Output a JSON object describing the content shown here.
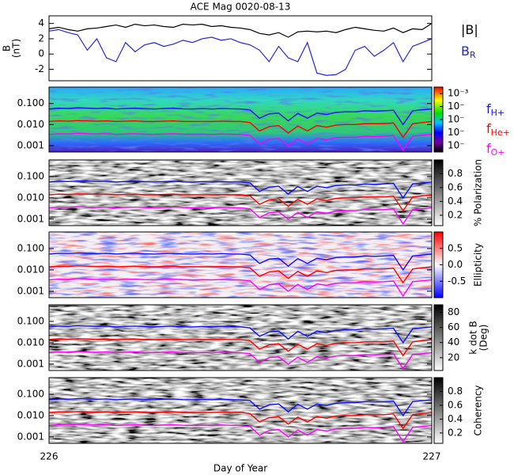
{
  "chart_data": [
    {
      "type": "line",
      "title": "ACE Mag 0020-08-13",
      "x": [
        226.0,
        226.025,
        226.05,
        226.075,
        226.1,
        226.125,
        226.15,
        226.175,
        226.2,
        226.225,
        226.25,
        226.275,
        226.3,
        226.325,
        226.35,
        226.375,
        226.4,
        226.425,
        226.45,
        226.475,
        226.5,
        226.525,
        226.55,
        226.575,
        226.6,
        226.625,
        226.65,
        226.675,
        226.7,
        226.725,
        226.75,
        226.775,
        226.8,
        226.825,
        226.85,
        226.875,
        226.9,
        226.925,
        226.95,
        226.975,
        227.0
      ],
      "xlim": [
        226,
        227
      ],
      "ylim": [
        -3.5,
        5
      ],
      "yticks": [
        -2,
        0,
        2,
        4
      ],
      "ylabel": [
        "B",
        "(nT)"
      ],
      "series": [
        {
          "name": "|B|",
          "color": "#000000",
          "values": [
            3.3,
            3.5,
            3.2,
            3.0,
            3.3,
            3.4,
            3.6,
            3.8,
            3.5,
            3.9,
            3.7,
            3.8,
            3.6,
            3.5,
            3.9,
            3.8,
            3.9,
            3.6,
            3.7,
            3.5,
            3.4,
            3.2,
            2.7,
            2.5,
            2.8,
            2.2,
            2.9,
            3.0,
            2.9,
            3.0,
            2.8,
            3.2,
            3.5,
            3.3,
            3.1,
            3.0,
            3.4,
            2.8,
            3.3,
            3.2,
            4.0
          ]
        },
        {
          "name": "B",
          "subscript": "R",
          "color": "#2424e6",
          "values": [
            3.0,
            3.2,
            2.8,
            2.5,
            0.5,
            2.0,
            -0.5,
            -1.0,
            1.5,
            0.3,
            1.2,
            1.5,
            1.0,
            1.3,
            1.8,
            1.5,
            2.0,
            2.2,
            1.8,
            2.0,
            1.5,
            1.2,
            0.5,
            -1.0,
            1.0,
            -0.5,
            -1.0,
            1.5,
            -2.5,
            -2.8,
            -2.7,
            -2.0,
            0.5,
            1.0,
            -0.3,
            0.5,
            1.5,
            -1.0,
            1.0,
            1.5,
            2.0
          ]
        }
      ]
    },
    {
      "type": "spectrogram",
      "colormap": "rainbow",
      "log": true,
      "x": [
        226.0,
        226.025,
        226.05,
        226.075,
        226.1,
        226.125,
        226.15,
        226.175,
        226.2,
        226.225,
        226.25,
        226.275,
        226.3,
        226.325,
        226.35,
        226.375,
        226.4,
        226.425,
        226.45,
        226.475,
        226.5,
        226.525,
        226.55,
        226.575,
        226.6,
        226.625,
        226.65,
        226.675,
        226.7,
        226.725,
        226.75,
        226.775,
        226.8,
        226.825,
        226.85,
        226.875,
        226.9,
        226.925,
        226.95,
        226.975,
        227.0
      ],
      "xlim": [
        226,
        227
      ],
      "ylim": [
        0.0005,
        0.6
      ],
      "yticks": [
        {
          "value": 0.1,
          "label": "0.100"
        },
        {
          "value": 0.01,
          "label": "0.010"
        },
        {
          "value": 0.001,
          "label": "0.001"
        }
      ],
      "clim": [
        -7.5,
        -2.5
      ],
      "cticks": [
        {
          "value": -3,
          "label": "10⁻³"
        },
        {
          "value": -4,
          "label": "10⁻"
        },
        {
          "value": -5,
          "label": "10⁻"
        },
        {
          "value": -6,
          "label": "10⁻"
        },
        {
          "value": -7,
          "label": "10⁻"
        }
      ],
      "series": [
        {
          "name": "f",
          "subscript": "H+",
          "color": "#1010ff",
          "values": [
            0.055,
            0.06,
            0.058,
            0.062,
            0.06,
            0.058,
            0.06,
            0.055,
            0.058,
            0.06,
            0.057,
            0.055,
            0.058,
            0.06,
            0.056,
            0.055,
            0.057,
            0.055,
            0.058,
            0.056,
            0.055,
            0.05,
            0.02,
            0.032,
            0.035,
            0.015,
            0.034,
            0.02,
            0.035,
            0.03,
            0.038,
            0.04,
            0.04,
            0.045,
            0.043,
            0.045,
            0.048,
            0.01,
            0.045,
            0.05,
            0.055
          ]
        },
        {
          "name": "f",
          "subscript": "He+",
          "color": "#ff0000",
          "values": [
            0.014,
            0.015,
            0.0145,
            0.0155,
            0.015,
            0.0145,
            0.015,
            0.014,
            0.0145,
            0.015,
            0.014,
            0.014,
            0.0145,
            0.015,
            0.014,
            0.014,
            0.014,
            0.014,
            0.0145,
            0.014,
            0.014,
            0.0125,
            0.005,
            0.008,
            0.009,
            0.004,
            0.0085,
            0.005,
            0.009,
            0.0075,
            0.0095,
            0.01,
            0.01,
            0.011,
            0.011,
            0.011,
            0.012,
            0.0025,
            0.011,
            0.0125,
            0.014
          ]
        },
        {
          "name": "f",
          "subscript": "O+",
          "color": "#ff00ff",
          "values": [
            0.0034,
            0.0037,
            0.0036,
            0.0039,
            0.0037,
            0.0036,
            0.0037,
            0.0034,
            0.0036,
            0.0037,
            0.0035,
            0.0034,
            0.0036,
            0.0037,
            0.0035,
            0.0034,
            0.0035,
            0.0034,
            0.0036,
            0.0035,
            0.0034,
            0.0031,
            0.0012,
            0.002,
            0.0022,
            0.001,
            0.0021,
            0.0012,
            0.0022,
            0.0019,
            0.0024,
            0.0025,
            0.0025,
            0.0028,
            0.0027,
            0.0028,
            0.003,
            0.0006,
            0.0028,
            0.0031,
            0.0034
          ]
        }
      ]
    },
    {
      "type": "spectrogram",
      "colormap": "gray",
      "log": true,
      "xlim": [
        226,
        227
      ],
      "ylim": [
        0.0005,
        0.6
      ],
      "yticks": [
        {
          "value": 0.1,
          "label": "0.100"
        },
        {
          "value": 0.01,
          "label": "0.010"
        },
        {
          "value": 0.001,
          "label": "0.001"
        }
      ],
      "clim": [
        0.05,
        1.0
      ],
      "cticks": [
        0.8,
        0.6,
        0.4,
        0.2
      ],
      "clabel": [
        "% Polarization"
      ]
    },
    {
      "type": "spectrogram",
      "colormap": "bluered",
      "log": true,
      "xlim": [
        226,
        227
      ],
      "ylim": [
        0.0005,
        0.6
      ],
      "yticks": [
        {
          "value": 0.1,
          "label": "0.100"
        },
        {
          "value": 0.01,
          "label": "0.010"
        },
        {
          "value": 0.001,
          "label": "0.001"
        }
      ],
      "clim": [
        -1,
        1
      ],
      "cticks": [
        0.5,
        {
          "value": 0,
          "label": "0.0"
        },
        -0.5
      ],
      "clabel": [
        "Ellipticity"
      ]
    },
    {
      "type": "spectrogram",
      "colormap": "gray",
      "log": true,
      "xlim": [
        226,
        227
      ],
      "ylim": [
        0.0005,
        0.6
      ],
      "yticks": [
        {
          "value": 0.1,
          "label": "0.100"
        },
        {
          "value": 0.01,
          "label": "0.010"
        },
        {
          "value": 0.001,
          "label": "0.001"
        }
      ],
      "clim": [
        3,
        90
      ],
      "cticks": [
        80,
        60,
        40,
        20
      ],
      "clabel": [
        "k dot B",
        "(Deg)"
      ]
    },
    {
      "type": "spectrogram",
      "colormap": "gray",
      "log": true,
      "xlim": [
        226,
        227
      ],
      "ylim": [
        0.0005,
        0.6
      ],
      "yticks": [
        {
          "value": 0.1,
          "label": "0.100"
        },
        {
          "value": 0.01,
          "label": "0.010"
        },
        {
          "value": 0.001,
          "label": "0.001"
        }
      ],
      "clim": [
        0.05,
        1.0
      ],
      "cticks": [
        0.8,
        0.6,
        0.4,
        0.2
      ],
      "clabel": [
        "Coherency"
      ],
      "xticks": [
        226,
        227
      ],
      "xlabel": "Day of Year"
    }
  ]
}
